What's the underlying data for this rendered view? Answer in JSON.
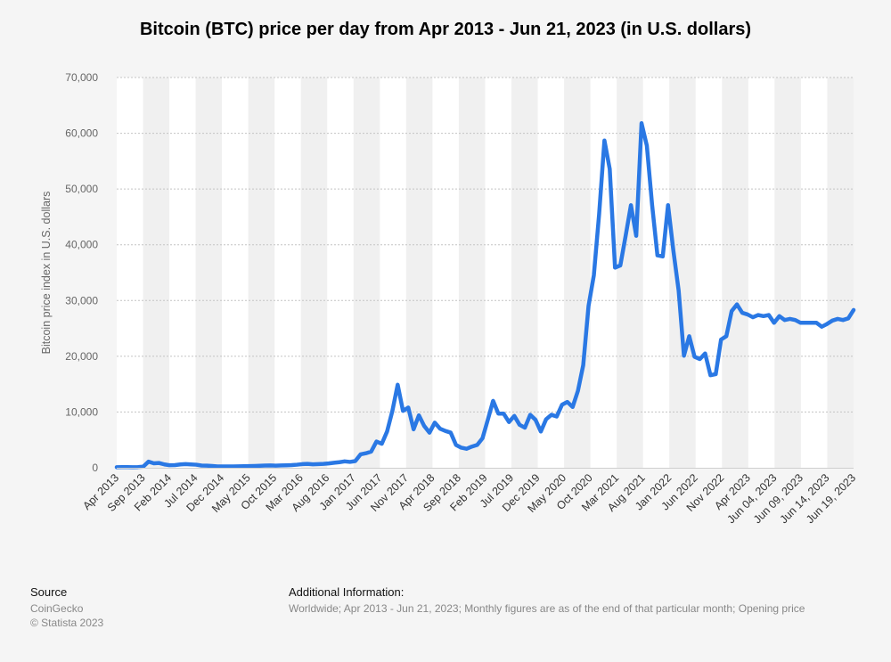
{
  "chart_data": {
    "type": "line",
    "title": "Bitcoin (BTC) price per day from Apr 2013 - Jun 21, 2023 (in U.S. dollars)",
    "xlabel": "",
    "ylabel": "Bitcoin price index in U.S. dollars",
    "ylim": [
      0,
      70000
    ],
    "y_ticks": [
      "0",
      "10,000",
      "20,000",
      "30,000",
      "40,000",
      "50,000",
      "60,000",
      "70,000"
    ],
    "x_tick_labels": [
      "Apr 2013",
      "Sep 2013",
      "Feb 2014",
      "Jul 2014",
      "Dec 2014",
      "May 2015",
      "Oct 2015",
      "Mar 2016",
      "Aug 2016",
      "Jan 2017",
      "Jun 2017",
      "Nov 2017",
      "Apr 2018",
      "Sep 2018",
      "Feb 2019",
      "Jul 2019",
      "Dec 2019",
      "May 2020",
      "Oct 2020",
      "Mar 2021",
      "Aug 2021",
      "Jan 2022",
      "Jun 2022",
      "Nov 2022",
      "Apr 2023",
      "Jun 04, 2023",
      "Jun 09, 2023",
      "Jun 14, 2023",
      "Jun 19, 2023"
    ],
    "grid": true,
    "series": [
      {
        "color": "#2a78e4",
        "values": [
          100,
          120,
          110,
          100,
          130,
          200,
          1100,
          800,
          850,
          600,
          450,
          480,
          600,
          650,
          600,
          550,
          400,
          380,
          320,
          250,
          240,
          230,
          250,
          260,
          280,
          300,
          320,
          350,
          400,
          420,
          380,
          420,
          440,
          480,
          550,
          650,
          700,
          620,
          650,
          700,
          780,
          900,
          1000,
          1150,
          1050,
          1200,
          2400,
          2600,
          2900,
          4700,
          4300,
          6500,
          10200,
          14900,
          10200,
          10800,
          6900,
          9400,
          7500,
          6300,
          8100,
          7000,
          6600,
          6300,
          4100,
          3600,
          3400,
          3800,
          4100,
          5300,
          8600,
          12000,
          9700,
          9700,
          8200,
          9300,
          7700,
          7200,
          9500,
          8600,
          6500,
          8700,
          9500,
          9200,
          11300,
          11800,
          10900,
          13800,
          18400,
          29000,
          34500,
          45500,
          58700,
          53600,
          35900,
          36300,
          41600,
          47100,
          41600,
          61800,
          57800,
          47100,
          38100,
          37900,
          47100,
          39000,
          31800,
          20100,
          23600,
          19900,
          19500,
          20500,
          16600,
          16800,
          23000,
          23600,
          28100,
          29300,
          27800,
          27500,
          27000,
          27400,
          27200,
          27400,
          26000,
          27200,
          26500,
          26700,
          26500,
          26000,
          26000,
          26000,
          26000,
          25300,
          25800,
          26400,
          26700,
          26500,
          26800,
          28300
        ]
      }
    ]
  },
  "footer": {
    "source_heading": "Source",
    "source_lines": [
      "CoinGecko",
      "© Statista 2023"
    ],
    "info_heading": "Additional Information:",
    "info_text": "Worldwide; Apr 2013 - Jun 21, 2023; Monthly figures are as of the end of that particular month; Opening price"
  }
}
